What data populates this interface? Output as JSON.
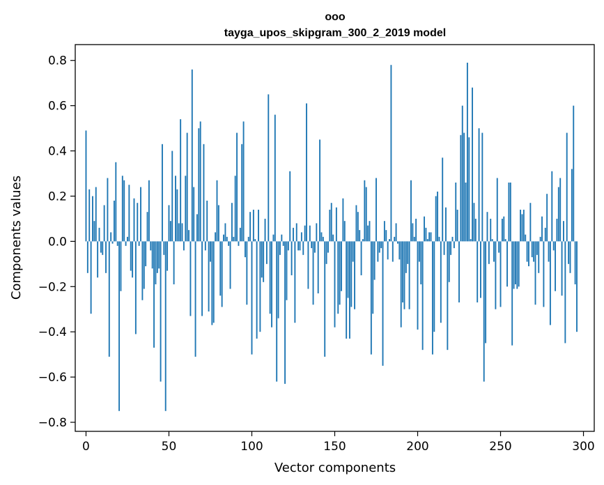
{
  "chart_data": {
    "type": "bar",
    "title_line1": "ооо",
    "title_line2": "tayga_upos_skipgram_300_2_2019 model",
    "xlabel": "Vector components",
    "ylabel": "Components values",
    "xlim": [
      -6.5,
      306.5
    ],
    "ylim": [
      -0.84,
      0.87
    ],
    "xticks": [
      0,
      50,
      100,
      150,
      200,
      250,
      300
    ],
    "xtick_labels": [
      "0",
      "50",
      "100",
      "150",
      "200",
      "250",
      "300"
    ],
    "yticks": [
      -0.8,
      -0.6,
      -0.4,
      -0.2,
      0.0,
      0.2,
      0.4,
      0.6,
      0.8
    ],
    "ytick_labels": [
      "−0.8",
      "−0.6",
      "−0.4",
      "−0.2",
      "0.0",
      "0.2",
      "0.4",
      "0.6",
      "0.8"
    ],
    "bar_color": "#1f77b4",
    "grid": false,
    "values": [
      0.49,
      -0.14,
      0.23,
      -0.32,
      0.2,
      0.09,
      0.24,
      -0.16,
      0.06,
      -0.05,
      -0.06,
      0.16,
      -0.14,
      0.28,
      -0.51,
      0.04,
      -0.01,
      0.18,
      0.35,
      -0.02,
      -0.75,
      -0.22,
      0.29,
      0.27,
      -0.02,
      0.02,
      0.25,
      -0.13,
      -0.16,
      0.19,
      -0.41,
      0.17,
      -0.02,
      0.24,
      -0.26,
      -0.21,
      -0.11,
      0.13,
      0.27,
      -0.04,
      -0.12,
      -0.47,
      -0.19,
      -0.14,
      -0.12,
      -0.62,
      0.43,
      -0.06,
      -0.75,
      -0.13,
      0.16,
      0.09,
      0.4,
      -0.19,
      0.29,
      0.23,
      0.08,
      0.54,
      0.08,
      -0.04,
      0.29,
      0.48,
      0.05,
      -0.33,
      0.76,
      0.24,
      -0.51,
      0.12,
      0.5,
      0.53,
      -0.33,
      0.43,
      -0.04,
      0.18,
      -0.31,
      -0.09,
      -0.37,
      -0.36,
      0.04,
      0.27,
      0.16,
      -0.24,
      -0.29,
      0.03,
      0.08,
      0.02,
      -0.02,
      -0.21,
      0.17,
      0.02,
      0.29,
      0.48,
      -0.02,
      0.06,
      0.43,
      0.53,
      -0.07,
      -0.28,
      0.02,
      0.13,
      -0.5,
      0.14,
      0.01,
      -0.43,
      0.14,
      -0.4,
      -0.16,
      -0.18,
      0.1,
      -0.1,
      0.65,
      -0.32,
      -0.38,
      0.03,
      0.56,
      -0.62,
      -0.34,
      -0.06,
      0.03,
      -0.02,
      -0.63,
      -0.26,
      -0.04,
      0.31,
      -0.15,
      0.06,
      -0.36,
      0.08,
      -0.04,
      -0.04,
      0.04,
      -0.06,
      0.07,
      0.61,
      -0.21,
      0.07,
      -0.03,
      -0.28,
      -0.05,
      0.08,
      -0.23,
      0.45,
      0.04,
      0.02,
      -0.51,
      -0.1,
      -0.05,
      0.14,
      0.17,
      0.03,
      -0.38,
      0.15,
      -0.32,
      -0.28,
      -0.22,
      0.19,
      0.09,
      -0.43,
      -0.25,
      -0.43,
      -0.29,
      -0.09,
      -0.3,
      0.16,
      0.13,
      0.05,
      -0.15,
      0.01,
      0.27,
      0.24,
      0.07,
      0.09,
      -0.5,
      -0.32,
      -0.17,
      0.28,
      -0.09,
      -0.05,
      -0.03,
      -0.55,
      0.09,
      0.05,
      -0.08,
      0.01,
      0.78,
      -0.09,
      0.02,
      0.08,
      -0.01,
      -0.08,
      -0.38,
      -0.27,
      -0.3,
      -0.14,
      -0.1,
      -0.3,
      0.27,
      0.08,
      0.02,
      0.1,
      -0.39,
      -0.09,
      -0.19,
      -0.48,
      0.11,
      0.06,
      0.01,
      0.04,
      0.04,
      -0.5,
      -0.4,
      0.2,
      0.22,
      0.02,
      -0.36,
      0.37,
      -0.06,
      0.15,
      -0.48,
      -0.18,
      -0.06,
      0.02,
      -0.03,
      0.26,
      0.14,
      -0.27,
      0.47,
      0.6,
      0.48,
      0.26,
      0.79,
      0.46,
      0.01,
      0.68,
      0.17,
      0.1,
      -0.27,
      0.5,
      -0.25,
      0.48,
      -0.62,
      -0.45,
      0.13,
      -0.1,
      0.1,
      0.01,
      -0.09,
      -0.3,
      0.28,
      -0.05,
      -0.29,
      0.1,
      0.11,
      0.01,
      -0.2,
      0.26,
      0.26,
      -0.46,
      -0.21,
      -0.19,
      -0.21,
      -0.2,
      0.14,
      0.12,
      0.14,
      0.03,
      -0.09,
      -0.11,
      0.17,
      -0.07,
      -0.09,
      -0.28,
      -0.06,
      -0.14,
      0.02,
      0.11,
      -0.29,
      0.06,
      0.21,
      -0.09,
      -0.37,
      0.31,
      -0.04,
      -0.22,
      0.1,
      0.24,
      0.28,
      -0.24,
      0.09,
      -0.45,
      0.48,
      -0.1,
      -0.14,
      0.32,
      0.6,
      -0.19,
      -0.4
    ]
  }
}
